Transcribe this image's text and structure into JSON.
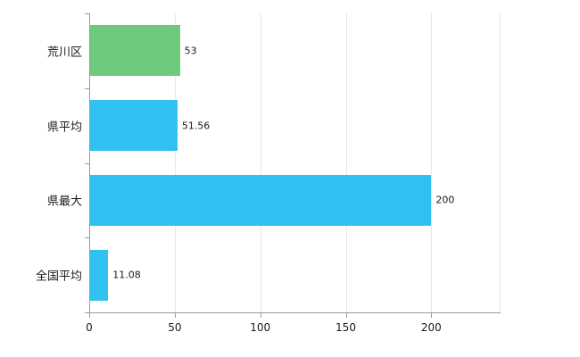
{
  "chart_data": {
    "type": "bar",
    "orientation": "horizontal",
    "title": "",
    "xlabel": "",
    "ylabel": "",
    "categories": [
      "荒川区",
      "県平均",
      "県最大",
      "全国平均"
    ],
    "values": [
      53,
      51.56,
      200,
      11.08
    ],
    "value_labels": [
      "53",
      "51.56",
      "200",
      "11.08"
    ],
    "series": [
      {
        "name": "",
        "values": [
          53,
          51.56,
          200,
          11.08
        ]
      }
    ],
    "bar_colors": [
      "#6dca7d",
      "#31c1f0",
      "#31c1f0",
      "#31c1f0"
    ],
    "xlim": [
      0,
      240
    ],
    "x_ticks": [
      0,
      50,
      100,
      150,
      200
    ],
    "grid": true,
    "legend": false,
    "grid_color": "#e7e7e7",
    "axis_color": "#9b9b9b",
    "text_color": "#1a1a1a",
    "background_color": "#ffffff"
  }
}
